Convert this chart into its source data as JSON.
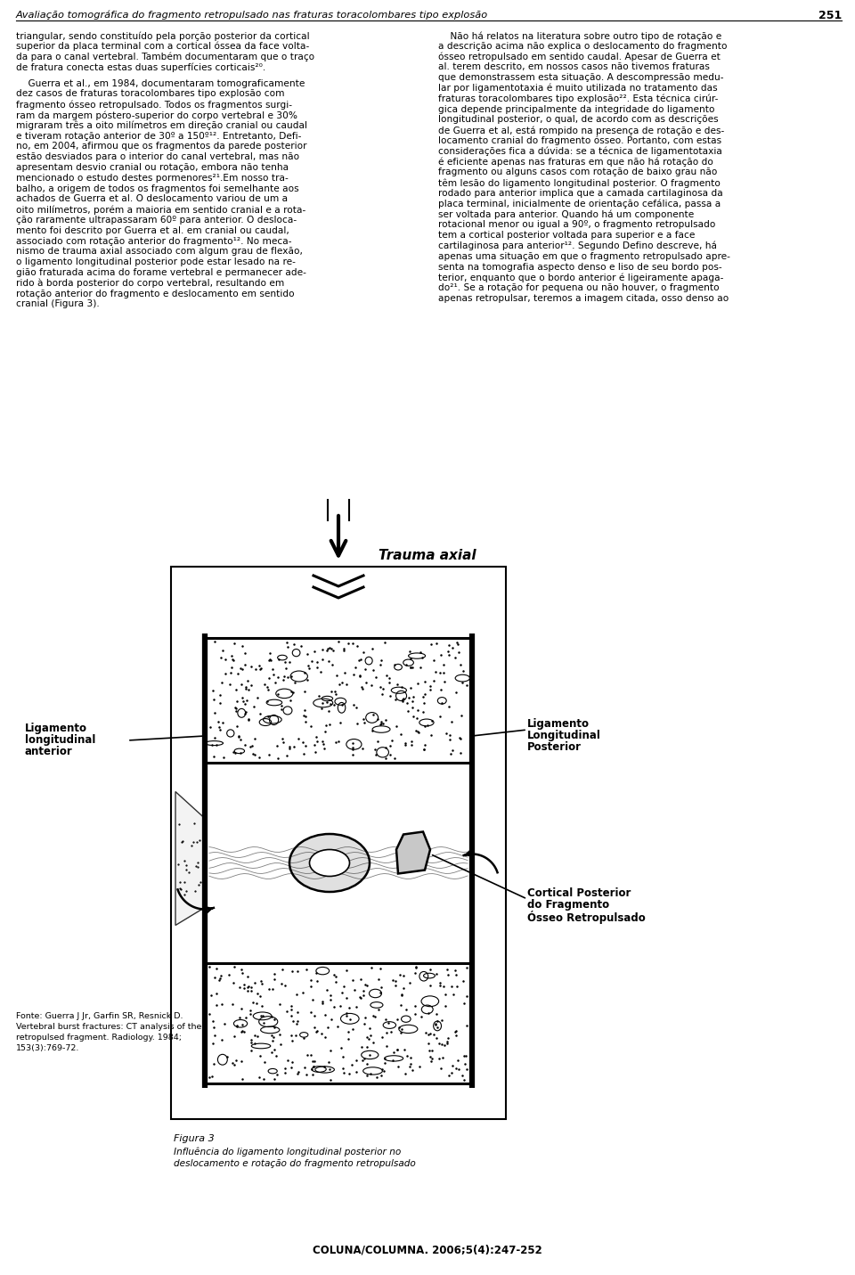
{
  "header_title": "Avaliação tomográfica do fragmento retropulsado nas fraturas toracolombares tipo explosão",
  "header_page": "251",
  "footer_journal": "COLUNA/COLUMNA. 2006;5(4):247-252",
  "figure_title": "Trauma axial",
  "label_left_line1": "Ligamento",
  "label_left_line2": "longitudinal",
  "label_left_line3": "anterior",
  "label_right_top_line1": "Ligamento",
  "label_right_top_line2": "Longitudinal",
  "label_right_top_line3": "Posterior",
  "label_right_bot_line1": "Cortical Posterior",
  "label_right_bot_line2": "do Fragmento",
  "label_right_bot_line3": "Ósseo Retropulsado",
  "fonte_text": "Fonte: Guerra J Jr, Garfin SR, Resnick D.\nVertebral burst fractures: CT analysis of the\nretropulsed fragment. Radiology. 1984;\n153(3):769-72.",
  "figura_label": "Figura 3",
  "figura_caption": "Influência do ligamento longitudinal posterior no\ndeslocamento e rotação do fragmento retropulsado",
  "bg_color": "#ffffff",
  "text_color": "#000000",
  "left_col_lines": [
    "triangular, sendo constituído pela porção posterior da cortical",
    "superior da placa terminal com a cortical óssea da face volta-",
    "da para o canal vertebral. Também documentaram que o traço",
    "de fratura conecta estas duas superfícies corticais²⁰.",
    "",
    "    Guerra et al., em 1984, documentaram tomograficamente",
    "dez casos de fraturas toracolombares tipo explosão com",
    "fragmento ósseo retropulsado. Todos os fragmentos surgi-",
    "ram da margem póstero-superior do corpo vertebral e 30%",
    "migraram três a oito milímetros em direção cranial ou caudal",
    "e tiveram rotação anterior de 30º a 150º¹². Entretanto, Defi-",
    "no, em 2004, afirmou que os fragmentos da parede posterior",
    "estão desviados para o interior do canal vertebral, mas não",
    "apresentam desvio cranial ou rotação, embora não tenha",
    "mencionado o estudo destes pormenores²¹.Em nosso tra-",
    "balho, a origem de todos os fragmentos foi semelhante aos",
    "achados de Guerra et al. O deslocamento variou de um a",
    "oito milímetros, porém a maioria em sentido cranial e a rota-",
    "ção raramente ultrapassaram 60º para anterior. O desloca-",
    "mento foi descrito por Guerra et al. em cranial ou caudal,",
    "associado com rotação anterior do fragmento¹². No meca-",
    "nismo de trauma axial associado com algum grau de flexão,",
    "o ligamento longitudinal posterior pode estar lesado na re-",
    "gião fraturada acima do forame vertebral e permanecer ade-",
    "rido à borda posterior do corpo vertebral, resultando em",
    "rotação anterior do fragmento e deslocamento em sentido",
    "cranial (Figura 3)."
  ],
  "right_col_lines": [
    "    Não há relatos na literatura sobre outro tipo de rotação e",
    "a descrição acima não explica o deslocamento do fragmento",
    "ósseo retropulsado em sentido caudal. Apesar de Guerra et",
    "al. terem descrito, em nossos casos não tivemos fraturas",
    "que demonstrassem esta situação. A descompressão medu-",
    "lar por ligamentotaxia é muito utilizada no tratamento das",
    "fraturas toracolombares tipo explosão²². Esta técnica cirúr-",
    "gica depende principalmente da integridade do ligamento",
    "longitudinal posterior, o qual, de acordo com as descrições",
    "de Guerra et al, está rompido na presença de rotação e des-",
    "locamento cranial do fragmento ósseo. Portanto, com estas",
    "considerações fica a dúvida: se a técnica de ligamentotaxia",
    "é eficiente apenas nas fraturas em que não há rotação do",
    "fragmento ou alguns casos com rotação de baixo grau não",
    "têm lesão do ligamento longitudinal posterior. O fragmento",
    "rodado para anterior implica que a camada cartilaginosa da",
    "placa terminal, inicialmente de orientação cefálica, passa a",
    "ser voltada para anterior. Quando há um componente",
    "rotacional menor ou igual a 90º, o fragmento retropulsado",
    "tem a cortical posterior voltada para superior e a face",
    "cartilaginosa para anterior¹². Segundo Defino descreve, há",
    "apenas uma situação em que o fragmento retropulsado apre-",
    "senta na tomografia aspecto denso e liso de seu bordo pos-",
    "terior, enquanto que o bordo anterior é ligeiramente apaga-",
    "do²¹. Se a rotação for pequena ou não houver, o fragmento",
    "apenas retropulsar, teremos a imagem citada, osso denso ao"
  ]
}
